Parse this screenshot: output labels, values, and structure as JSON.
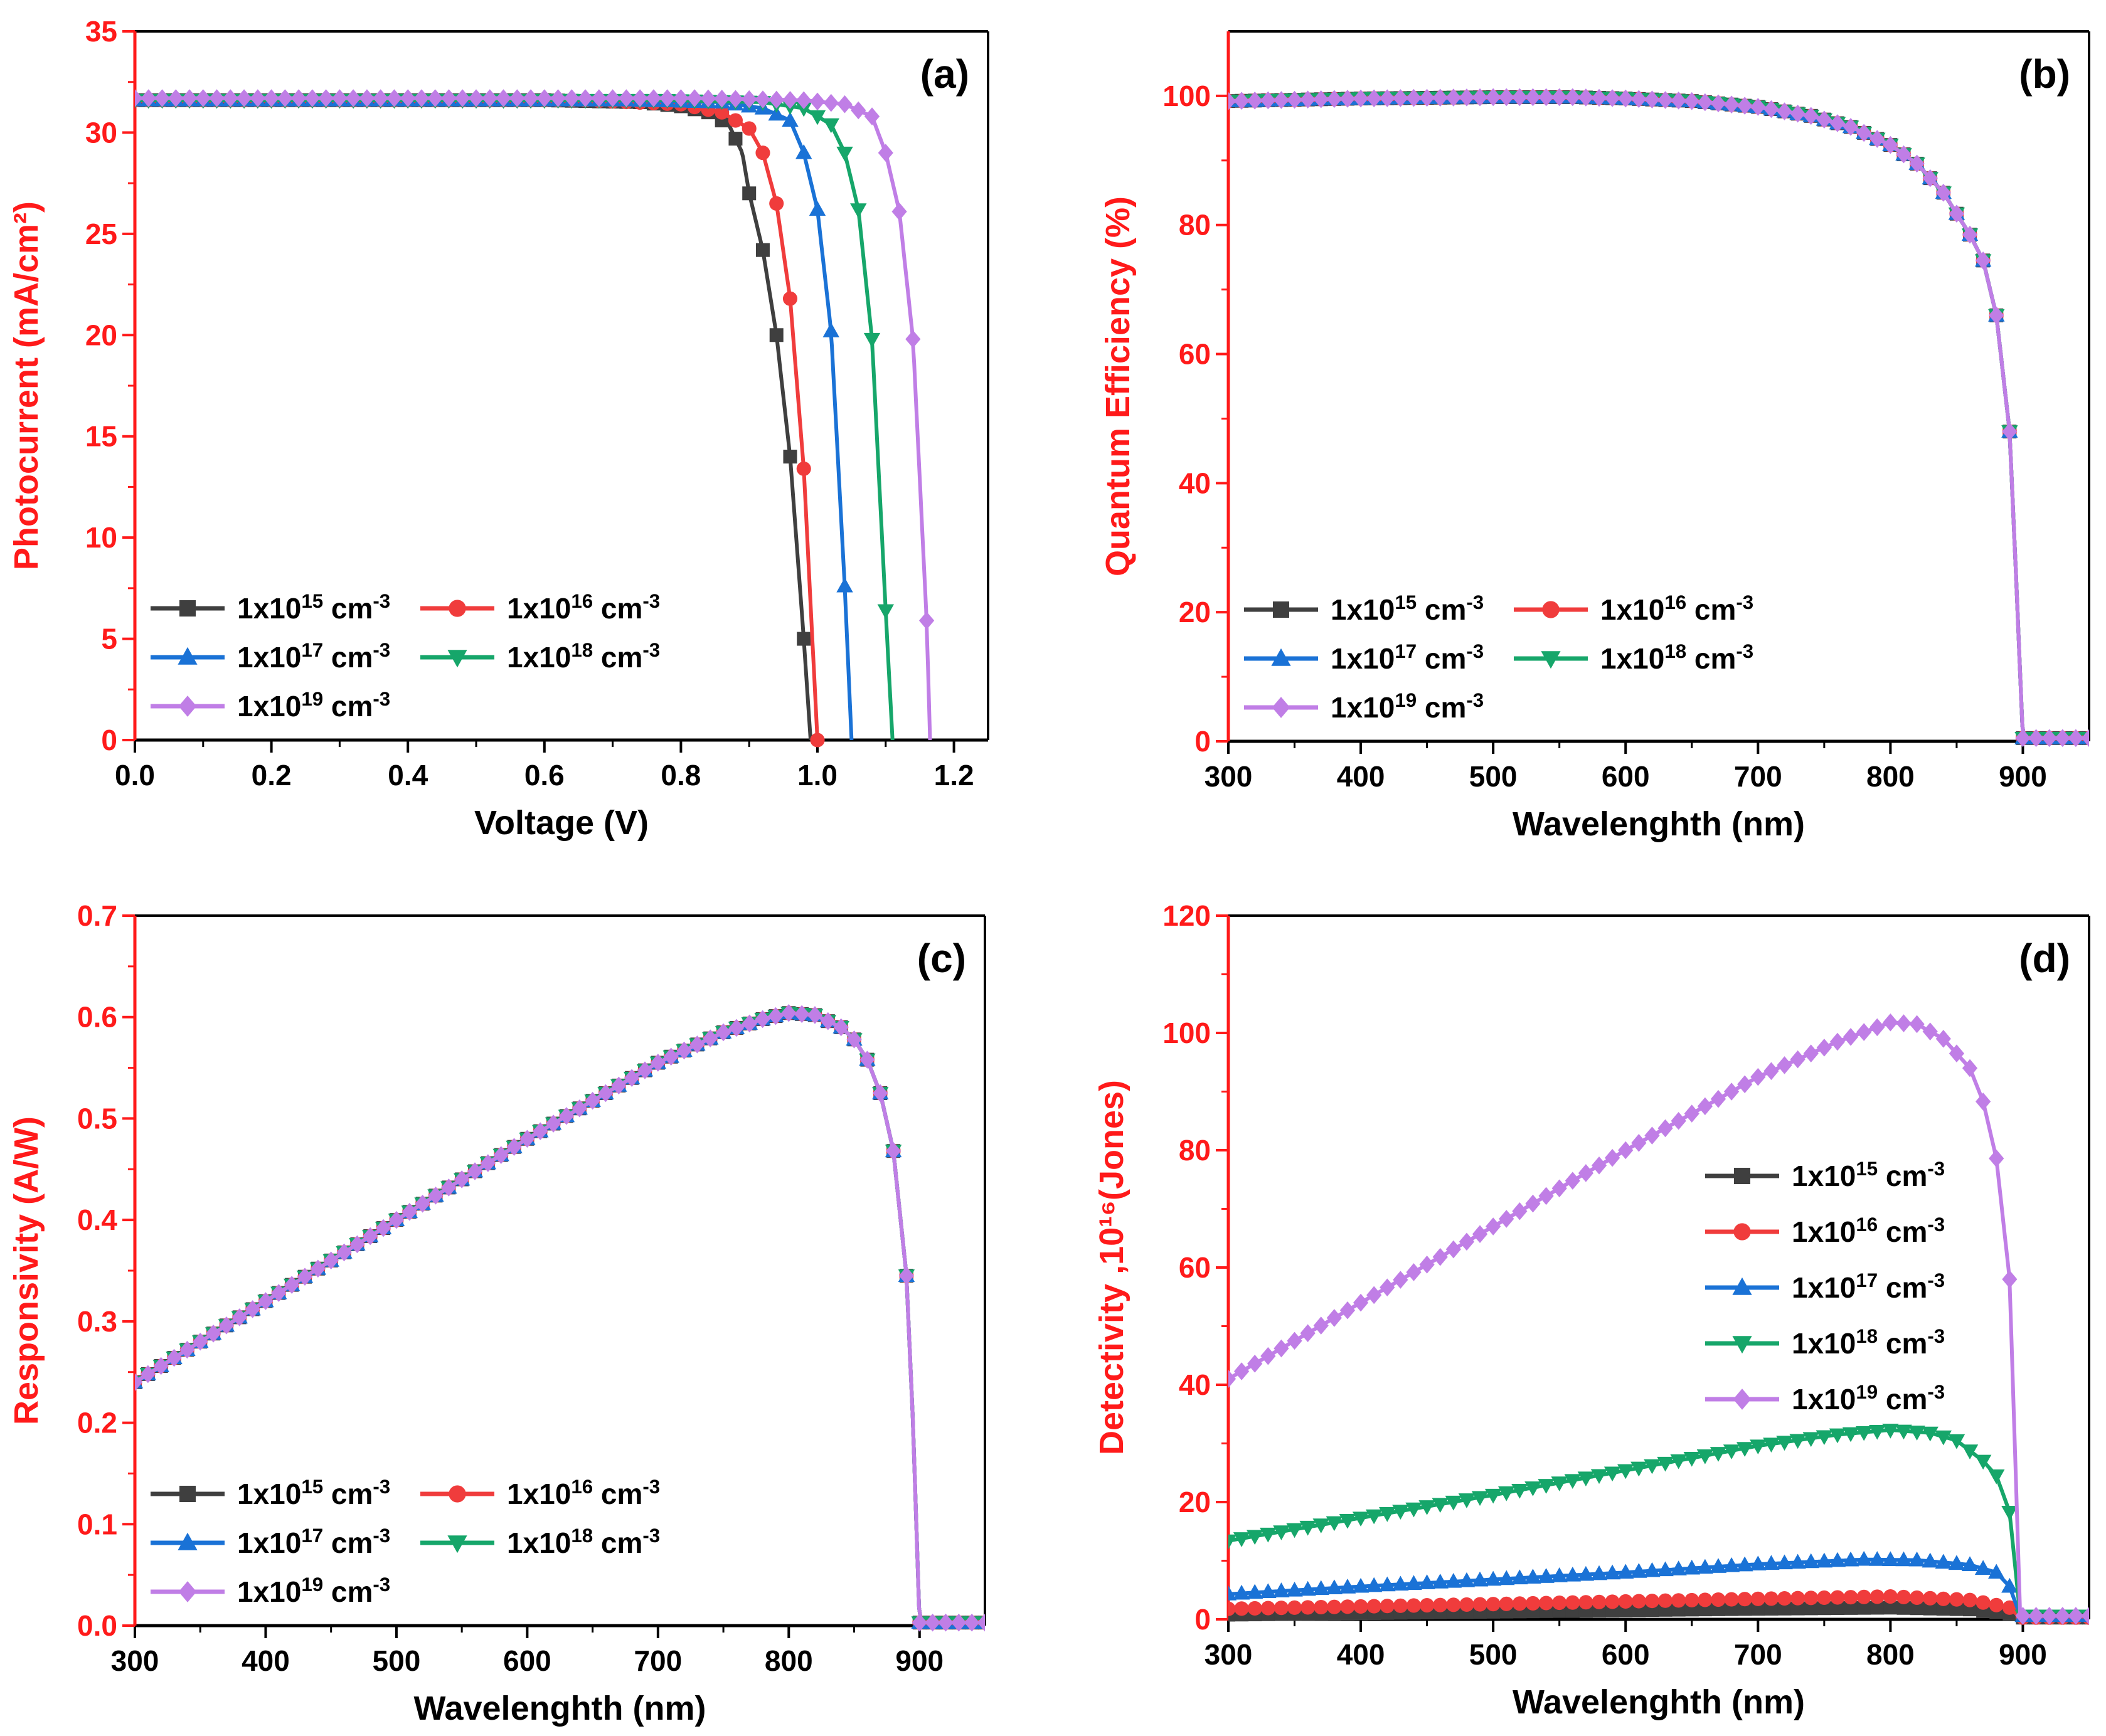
{
  "figure": {
    "y_axis_color": "#ff1a1a",
    "series_colors": [
      "#3f3f3f",
      "#f03c3c",
      "#1a72d6",
      "#16a66a",
      "#c07ee6"
    ],
    "marker_shapes": [
      "square",
      "circle",
      "triangle-up",
      "triangle-down",
      "diamond"
    ]
  },
  "chart_data": [
    {
      "id": "a",
      "type": "line",
      "panel_label": "(a)",
      "title": "",
      "xlabel": "Voltage (V)",
      "ylabel": "Photocurrent (mA/cm²)",
      "xlim": [
        0,
        1.25
      ],
      "ylim": [
        0,
        35
      ],
      "xticks": [
        0,
        0.2,
        0.4,
        0.6,
        0.8,
        1.0,
        1.2
      ],
      "xtick_labels": [
        "0.0",
        "0.2",
        "0.4",
        "0.6",
        "0.8",
        "1.0",
        "1.2"
      ],
      "yticks": [
        0,
        5,
        10,
        15,
        20,
        25,
        30,
        35
      ],
      "ytick_labels": [
        "0",
        "5",
        "10",
        "15",
        "20",
        "25",
        "30",
        "35"
      ],
      "legend_position": "bottom-left",
      "legend_layout": "2-column",
      "series": [
        {
          "name": "1x10¹⁵ cm⁻³",
          "base": "1x10",
          "sup": "15",
          "unit": " cm",
          "unit_sup": "-3",
          "points": [
            [
              0,
              31.6
            ],
            [
              0.6,
              31.6
            ],
            [
              0.74,
              31.5
            ],
            [
              0.8,
              31.3
            ],
            [
              0.84,
              31.0
            ],
            [
              0.87,
              30.4
            ],
            [
              0.89,
              29.0
            ],
            [
              0.9,
              27.0
            ],
            [
              0.92,
              24.2
            ],
            [
              0.94,
              20.0
            ],
            [
              0.96,
              14.0
            ],
            [
              0.98,
              5.0
            ],
            [
              0.99,
              0
            ]
          ]
        },
        {
          "name": "1x10¹⁶ cm⁻³",
          "base": "1x10",
          "sup": "16",
          "unit": " cm",
          "unit_sup": "-3",
          "points": [
            [
              0,
              31.6
            ],
            [
              0.66,
              31.6
            ],
            [
              0.8,
              31.4
            ],
            [
              0.86,
              31.0
            ],
            [
              0.9,
              30.2
            ],
            [
              0.92,
              29.0
            ],
            [
              0.94,
              26.5
            ],
            [
              0.96,
              21.8
            ],
            [
              0.98,
              13.4
            ],
            [
              1.0,
              0
            ]
          ]
        },
        {
          "name": "1x10¹⁷ cm⁻³",
          "base": "1x10",
          "sup": "17",
          "unit": " cm",
          "unit_sup": "-3",
          "points": [
            [
              0,
              31.6
            ],
            [
              0.72,
              31.6
            ],
            [
              0.86,
              31.5
            ],
            [
              0.92,
              31.2
            ],
            [
              0.96,
              30.6
            ],
            [
              0.98,
              29.0
            ],
            [
              1.0,
              26.2
            ],
            [
              1.02,
              20.2
            ],
            [
              1.04,
              7.6
            ],
            [
              1.05,
              0
            ]
          ]
        },
        {
          "name": "1x10¹⁸ cm⁻³",
          "base": "1x10",
          "sup": "18",
          "unit": " cm",
          "unit_sup": "-3",
          "points": [
            [
              0,
              31.6
            ],
            [
              0.78,
              31.6
            ],
            [
              0.92,
              31.5
            ],
            [
              0.98,
              31.2
            ],
            [
              1.02,
              30.4
            ],
            [
              1.04,
              29.0
            ],
            [
              1.06,
              26.2
            ],
            [
              1.08,
              19.8
            ],
            [
              1.1,
              6.4
            ],
            [
              1.11,
              0
            ]
          ]
        },
        {
          "name": "1x10¹⁹ cm⁻³",
          "base": "1x10",
          "sup": "19",
          "unit": " cm",
          "unit_sup": "-3",
          "points": [
            [
              0,
              31.7
            ],
            [
              0.82,
              31.7
            ],
            [
              0.98,
              31.6
            ],
            [
              1.04,
              31.4
            ],
            [
              1.08,
              30.8
            ],
            [
              1.1,
              29.0
            ],
            [
              1.12,
              26.1
            ],
            [
              1.14,
              19.8
            ],
            [
              1.16,
              5.9
            ],
            [
              1.165,
              0
            ]
          ]
        }
      ]
    },
    {
      "id": "b",
      "type": "line",
      "panel_label": "(b)",
      "title": "",
      "xlabel": "Wavelenghth (nm)",
      "ylabel": "Quantum Efficiency (%)",
      "xlim": [
        300,
        950
      ],
      "ylim": [
        0,
        110
      ],
      "xticks": [
        300,
        400,
        500,
        600,
        700,
        800,
        900
      ],
      "xtick_labels": [
        "300",
        "400",
        "500",
        "600",
        "700",
        "800",
        "900"
      ],
      "yticks": [
        0,
        20,
        40,
        60,
        80,
        100
      ],
      "ytick_labels": [
        "0",
        "20",
        "40",
        "60",
        "80",
        "100"
      ],
      "legend_position": "bottom-left",
      "legend_layout": "2-column",
      "series_points_note": "all five series overlap",
      "points": [
        [
          300,
          99.2
        ],
        [
          400,
          99.6
        ],
        [
          500,
          99.8
        ],
        [
          560,
          99.8
        ],
        [
          600,
          99.6
        ],
        [
          650,
          99.2
        ],
        [
          700,
          98.3
        ],
        [
          740,
          96.9
        ],
        [
          770,
          95.2
        ],
        [
          800,
          92.4
        ],
        [
          820,
          89.5
        ],
        [
          840,
          85.0
        ],
        [
          860,
          78.5
        ],
        [
          870,
          74.5
        ],
        [
          880,
          66.0
        ],
        [
          890,
          48.0
        ],
        [
          895,
          25.0
        ],
        [
          900,
          0.5
        ],
        [
          950,
          0.5
        ]
      ],
      "series": [
        {
          "name": "1x10¹⁵ cm⁻³",
          "base": "1x10",
          "sup": "15",
          "unit": " cm",
          "unit_sup": "-3"
        },
        {
          "name": "1x10¹⁶ cm⁻³",
          "base": "1x10",
          "sup": "16",
          "unit": " cm",
          "unit_sup": "-3"
        },
        {
          "name": "1x10¹⁷ cm⁻³",
          "base": "1x10",
          "sup": "17",
          "unit": " cm",
          "unit_sup": "-3"
        },
        {
          "name": "1x10¹⁸ cm⁻³",
          "base": "1x10",
          "sup": "18",
          "unit": " cm",
          "unit_sup": "-3"
        },
        {
          "name": "1x10¹⁹ cm⁻³",
          "base": "1x10",
          "sup": "19",
          "unit": " cm",
          "unit_sup": "-3"
        }
      ]
    },
    {
      "id": "c",
      "type": "line",
      "panel_label": "(c)",
      "title": "",
      "xlabel": "Wavelenghth (nm)",
      "ylabel": "Responsivity (A/W)",
      "xlim": [
        300,
        950
      ],
      "ylim": [
        0,
        0.7
      ],
      "xticks": [
        300,
        400,
        500,
        600,
        700,
        800,
        900
      ],
      "xtick_labels": [
        "300",
        "400",
        "500",
        "600",
        "700",
        "800",
        "900"
      ],
      "yticks": [
        0,
        0.1,
        0.2,
        0.3,
        0.4,
        0.5,
        0.6,
        0.7
      ],
      "ytick_labels": [
        "0.0",
        "0.1",
        "0.2",
        "0.3",
        "0.4",
        "0.5",
        "0.6",
        "0.7"
      ],
      "legend_position": "bottom-left",
      "legend_layout": "2-column",
      "series_points_note": "all five series overlap",
      "points": [
        [
          300,
          0.24
        ],
        [
          400,
          0.32
        ],
        [
          500,
          0.4
        ],
        [
          600,
          0.48
        ],
        [
          700,
          0.555
        ],
        [
          750,
          0.585
        ],
        [
          780,
          0.598
        ],
        [
          800,
          0.604
        ],
        [
          820,
          0.602
        ],
        [
          840,
          0.59
        ],
        [
          850,
          0.578
        ],
        [
          860,
          0.558
        ],
        [
          870,
          0.525
        ],
        [
          880,
          0.468
        ],
        [
          890,
          0.345
        ],
        [
          895,
          0.2
        ],
        [
          900,
          0.003
        ],
        [
          950,
          0.003
        ]
      ],
      "series": [
        {
          "name": "1x10¹⁵ cm⁻³",
          "base": "1x10",
          "sup": "15",
          "unit": " cm",
          "unit_sup": "-3"
        },
        {
          "name": "1x10¹⁶ cm⁻³",
          "base": "1x10",
          "sup": "16",
          "unit": " cm",
          "unit_sup": "-3"
        },
        {
          "name": "1x10¹⁷ cm⁻³",
          "base": "1x10",
          "sup": "17",
          "unit": " cm",
          "unit_sup": "-3"
        },
        {
          "name": "1x10¹⁸ cm⁻³",
          "base": "1x10",
          "sup": "18",
          "unit": " cm",
          "unit_sup": "-3"
        },
        {
          "name": "1x10¹⁹ cm⁻³",
          "base": "1x10",
          "sup": "19",
          "unit": " cm",
          "unit_sup": "-3"
        }
      ]
    },
    {
      "id": "d",
      "type": "line",
      "panel_label": "(d)",
      "title": "",
      "xlabel": "Wavelenghth (nm)",
      "ylabel": "Detectivity ,10¹⁶(Jones)",
      "xlim": [
        300,
        950
      ],
      "ylim": [
        0,
        120
      ],
      "xticks": [
        300,
        400,
        500,
        600,
        700,
        800,
        900
      ],
      "xtick_labels": [
        "300",
        "400",
        "500",
        "600",
        "700",
        "800",
        "900"
      ],
      "yticks": [
        0,
        20,
        40,
        60,
        80,
        100,
        120
      ],
      "ytick_labels": [
        "0",
        "20",
        "40",
        "60",
        "80",
        "100",
        "120"
      ],
      "legend_position": "middle-right",
      "legend_layout": "1-column",
      "series": [
        {
          "name": "1x10¹⁵ cm⁻³",
          "base": "1x10",
          "sup": "15",
          "unit": " cm",
          "unit_sup": "-3",
          "points": [
            [
              300,
              0.8
            ],
            [
              500,
              1.3
            ],
            [
              700,
              1.8
            ],
            [
              800,
              2.0
            ],
            [
              860,
              1.7
            ],
            [
              890,
              1.0
            ],
            [
              898,
              0.3
            ],
            [
              950,
              0.3
            ]
          ]
        },
        {
          "name": "1x10¹⁶ cm⁻³",
          "base": "1x10",
          "sup": "16",
          "unit": " cm",
          "unit_sup": "-3",
          "points": [
            [
              300,
              1.8
            ],
            [
              500,
              2.6
            ],
            [
              700,
              3.5
            ],
            [
              800,
              3.9
            ],
            [
              860,
              3.3
            ],
            [
              890,
              2.0
            ],
            [
              898,
              0.3
            ],
            [
              950,
              0.3
            ]
          ]
        },
        {
          "name": "1x10¹⁷ cm⁻³",
          "base": "1x10",
          "sup": "17",
          "unit": " cm",
          "unit_sup": "-3",
          "points": [
            [
              300,
              4.3
            ],
            [
              400,
              5.6
            ],
            [
              500,
              6.8
            ],
            [
              600,
              8.0
            ],
            [
              700,
              9.4
            ],
            [
              780,
              10.2
            ],
            [
              820,
              10.1
            ],
            [
              860,
              9.3
            ],
            [
              880,
              8.0
            ],
            [
              890,
              5.6
            ],
            [
              898,
              0.6
            ],
            [
              950,
              0.6
            ]
          ]
        },
        {
          "name": "1x10¹⁸ cm⁻³",
          "base": "1x10",
          "sup": "18",
          "unit": " cm",
          "unit_sup": "-3",
          "points": [
            [
              300,
              13.4
            ],
            [
              400,
              17.3
            ],
            [
              500,
              21.2
            ],
            [
              600,
              25.4
            ],
            [
              700,
              29.6
            ],
            [
              760,
              31.5
            ],
            [
              800,
              32.3
            ],
            [
              830,
              31.8
            ],
            [
              850,
              30.5
            ],
            [
              870,
              27.0
            ],
            [
              880,
              24.5
            ],
            [
              890,
              18.3
            ],
            [
              898,
              0.6
            ],
            [
              950,
              0.6
            ]
          ]
        },
        {
          "name": "1x10¹⁹ cm⁻³",
          "base": "1x10",
          "sup": "19",
          "unit": " cm",
          "unit_sup": "-3",
          "points": [
            [
              300,
              41.0
            ],
            [
              400,
              54.0
            ],
            [
              500,
              67.0
            ],
            [
              600,
              80.0
            ],
            [
              700,
              92.5
            ],
            [
              760,
              98.5
            ],
            [
              800,
              101.8
            ],
            [
              820,
              101.5
            ],
            [
              840,
              99.0
            ],
            [
              860,
              94.0
            ],
            [
              870,
              88.3
            ],
            [
              880,
              78.6
            ],
            [
              890,
              58.0
            ],
            [
              898,
              0.6
            ],
            [
              950,
              0.6
            ]
          ]
        }
      ]
    }
  ]
}
